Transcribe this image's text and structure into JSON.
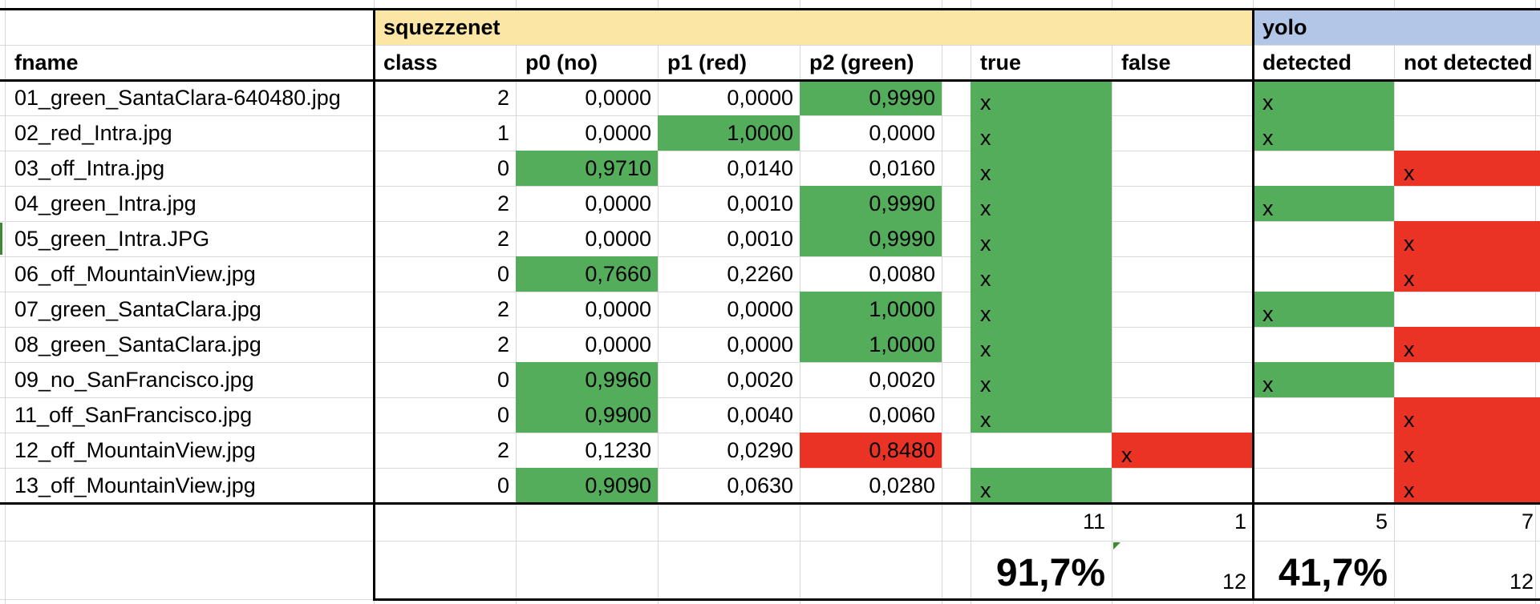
{
  "header": {
    "squeezenet_label": "squezzenet",
    "yolo_label": "yolo",
    "fname": "fname",
    "class": "class",
    "p0": "p0 (no)",
    "p1": "p1 (red)",
    "p2": "p2 (green)",
    "true": "true",
    "false": "false",
    "detected": "detected",
    "not_detected": "not detected"
  },
  "rows": [
    {
      "fname": "01_green_SantaClara-640480.jpg",
      "class": "2",
      "p0": "0,0000",
      "p1": "0,0000",
      "p2": "0,9990",
      "true": "x",
      "false": "",
      "detected": "x",
      "not_detected": ""
    },
    {
      "fname": "02_red_Intra.jpg",
      "class": "1",
      "p0": "0,0000",
      "p1": "1,0000",
      "p2": "0,0000",
      "true": "x",
      "false": "",
      "detected": "x",
      "not_detected": ""
    },
    {
      "fname": "03_off_Intra.jpg",
      "class": "0",
      "p0": "0,9710",
      "p1": "0,0140",
      "p2": "0,0160",
      "true": "x",
      "false": "",
      "detected": "",
      "not_detected": "x"
    },
    {
      "fname": "04_green_Intra.jpg",
      "class": "2",
      "p0": "0,0000",
      "p1": "0,0010",
      "p2": "0,9990",
      "true": "x",
      "false": "",
      "detected": "x",
      "not_detected": ""
    },
    {
      "fname": "05_green_Intra.JPG",
      "class": "2",
      "p0": "0,0000",
      "p1": "0,0010",
      "p2": "0,9990",
      "true": "x",
      "false": "",
      "detected": "",
      "not_detected": "x"
    },
    {
      "fname": "06_off_MountainView.jpg",
      "class": "0",
      "p0": "0,7660",
      "p1": "0,2260",
      "p2": "0,0080",
      "true": "x",
      "false": "",
      "detected": "",
      "not_detected": "x"
    },
    {
      "fname": "07_green_SantaClara.jpg",
      "class": "2",
      "p0": "0,0000",
      "p1": "0,0000",
      "p2": "1,0000",
      "true": "x",
      "false": "",
      "detected": "x",
      "not_detected": ""
    },
    {
      "fname": "08_green_SantaClara.jpg",
      "class": "2",
      "p0": "0,0000",
      "p1": "0,0000",
      "p2": "1,0000",
      "true": "x",
      "false": "",
      "detected": "",
      "not_detected": "x"
    },
    {
      "fname": "09_no_SanFrancisco.jpg",
      "class": "0",
      "p0": "0,9960",
      "p1": "0,0020",
      "p2": "0,0020",
      "true": "x",
      "false": "",
      "detected": "x",
      "not_detected": ""
    },
    {
      "fname": "11_off_SanFrancisco.jpg",
      "class": "0",
      "p0": "0,9900",
      "p1": "0,0040",
      "p2": "0,0060",
      "true": "x",
      "false": "",
      "detected": "",
      "not_detected": "x"
    },
    {
      "fname": "12_off_MountainView.jpg",
      "class": "2",
      "p0": "0,1230",
      "p1": "0,0290",
      "p2": "0,8480",
      "true": "",
      "false": "x",
      "detected": "",
      "not_detected": "x"
    },
    {
      "fname": "13_off_MountainView.jpg",
      "class": "0",
      "p0": "0,9090",
      "p1": "0,0630",
      "p2": "0,0280",
      "true": "x",
      "false": "",
      "detected": "",
      "not_detected": "x"
    }
  ],
  "fills": [
    {
      "p0": "",
      "p1": "",
      "p2": "green",
      "tf": "green",
      "yolo": "green"
    },
    {
      "p0": "",
      "p1": "green",
      "p2": "",
      "tf": "green",
      "yolo": "green"
    },
    {
      "p0": "green",
      "p1": "",
      "p2": "",
      "tf": "green",
      "yolo": "red"
    },
    {
      "p0": "",
      "p1": "",
      "p2": "green",
      "tf": "green",
      "yolo": "green"
    },
    {
      "p0": "",
      "p1": "",
      "p2": "green",
      "tf": "green",
      "yolo": "red"
    },
    {
      "p0": "green",
      "p1": "",
      "p2": "",
      "tf": "green",
      "yolo": "red"
    },
    {
      "p0": "",
      "p1": "",
      "p2": "green",
      "tf": "green",
      "yolo": "green"
    },
    {
      "p0": "",
      "p1": "",
      "p2": "green",
      "tf": "green",
      "yolo": "red"
    },
    {
      "p0": "green",
      "p1": "",
      "p2": "",
      "tf": "green",
      "yolo": "green"
    },
    {
      "p0": "green",
      "p1": "",
      "p2": "",
      "tf": "green",
      "yolo": "red"
    },
    {
      "p0": "",
      "p1": "",
      "p2": "red",
      "tf": "red",
      "yolo": "red"
    },
    {
      "p0": "green",
      "p1": "",
      "p2": "",
      "tf": "green",
      "yolo": "red"
    }
  ],
  "summary": {
    "true_count": "11",
    "false_count": "1",
    "detected_count": "5",
    "not_detected_count": "7",
    "squeezenet_accuracy": "91,7%",
    "squeezenet_total": "12",
    "yolo_accuracy": "41,7%",
    "yolo_total": "12"
  },
  "colors": {
    "squeezenet_header": "#fce6a6",
    "yolo_header": "#b4c6e7",
    "green": "#54ad5b",
    "red": "#ea3324",
    "gridline": "#d9d9d9",
    "border": "#000000"
  }
}
